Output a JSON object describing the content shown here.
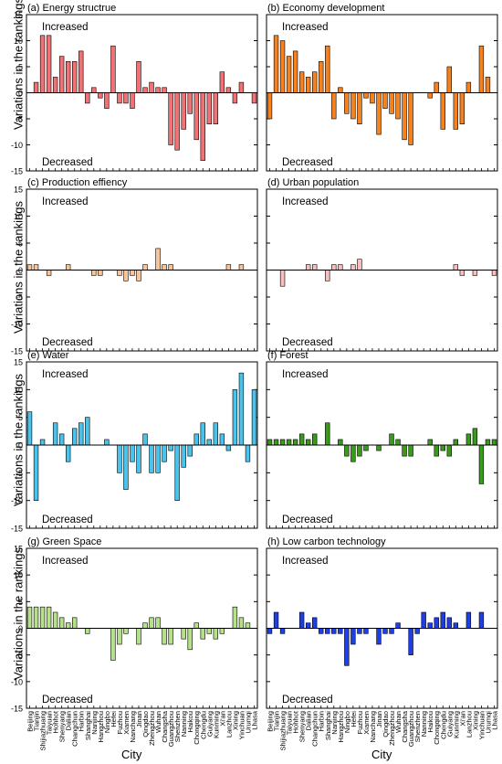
{
  "y_axis_label": "Variations in the rankings",
  "x_axis_label": "City",
  "cities": [
    "Beijing",
    "Tianjin",
    "Shijiazhuang",
    "Taiyuan",
    "Hohhot",
    "Shenyang",
    "Dalian",
    "Changchun",
    "Harbin",
    "Shanghai",
    "Nanjing",
    "Hangzhou",
    "Ningbo",
    "Hefei",
    "Fuzhou",
    "Xiamen",
    "Nanchang",
    "Jinan",
    "Qingdao",
    "Zhengzhou",
    "Wuhan",
    "Changsha",
    "Guangzhou",
    "Shenzhen",
    "Nanning",
    "Haikou",
    "Chongqing",
    "Chengdu",
    "Guiyang",
    "Kunming",
    "Xi'an",
    "Lanzhou",
    "Xining",
    "Yinchuan",
    "Urumqi",
    "Lhasa"
  ],
  "bar_colors": {
    "energy": "#f07275",
    "economy": "#f5821f",
    "production": "#f6c59a",
    "population": "#f6c0c0",
    "water": "#49c2ec",
    "forest": "#3a9a1a",
    "green": "#b6e089",
    "lowcarbon": "#1f3fe0"
  },
  "chart_data": [
    {
      "type": "bar",
      "key": "energy",
      "title": "(a) Energy structrue",
      "annotations": [
        "Increased",
        "Decreased"
      ],
      "ylim": [
        -15,
        15
      ],
      "yticks": [
        -15,
        -10,
        -5,
        0,
        5,
        10,
        15
      ],
      "values": [
        0,
        2,
        11,
        11,
        3,
        7,
        6,
        6,
        8,
        -2,
        1,
        -1,
        -3,
        9,
        -2,
        -2,
        -3,
        6,
        1,
        2,
        1,
        1,
        -10,
        -11,
        -7,
        -4,
        -9,
        -13,
        -6,
        -6,
        4,
        1,
        -2,
        2,
        0,
        -2
      ]
    },
    {
      "type": "bar",
      "key": "economy",
      "title": "(b) Economy development",
      "annotations": [
        "Increased",
        "Decreased"
      ],
      "ylim": [
        -15,
        15
      ],
      "yticks": [
        -15,
        -10,
        -5,
        0,
        5,
        10,
        15
      ],
      "values": [
        -5,
        11,
        10,
        7,
        8,
        4,
        3,
        4,
        6,
        9,
        -5,
        1,
        -4,
        -5,
        -6,
        -1,
        -2,
        -8,
        -3,
        -4,
        -5,
        -9,
        -10,
        0,
        0,
        -1,
        2,
        -7,
        5,
        -7,
        -6,
        2,
        0,
        9,
        3,
        0
      ]
    },
    {
      "type": "bar",
      "key": "production",
      "title": "(c) Production effiency",
      "annotations": [
        "Increased",
        "Decreased"
      ],
      "ylim": [
        -15,
        15
      ],
      "yticks": [
        -15,
        -10,
        -5,
        0,
        5,
        10,
        15
      ],
      "values": [
        1,
        1,
        0,
        -1,
        0,
        0,
        1,
        0,
        0,
        0,
        -1,
        -1,
        0,
        0,
        -1,
        -2,
        -1,
        -2,
        1,
        0,
        4,
        1,
        1,
        0,
        0,
        0,
        0,
        0,
        0,
        0,
        0,
        1,
        0,
        1,
        0,
        0
      ]
    },
    {
      "type": "bar",
      "key": "population",
      "title": "(d) Urban population",
      "annotations": [
        "Increased",
        "Decreased"
      ],
      "ylim": [
        -15,
        15
      ],
      "yticks": [
        -15,
        -10,
        -5,
        0,
        5,
        10,
        15
      ],
      "values": [
        0,
        0,
        -3,
        0,
        0,
        0,
        1,
        1,
        0,
        -2,
        1,
        1,
        0,
        1,
        2,
        0,
        0,
        0,
        0,
        0,
        0,
        0,
        0,
        0,
        0,
        0,
        0,
        0,
        0,
        1,
        -1,
        0,
        -1,
        0,
        0,
        -1
      ]
    },
    {
      "type": "bar",
      "key": "water",
      "title": "(e) Water",
      "annotations": [
        "Increased",
        "Decreased"
      ],
      "ylim": [
        -15,
        15
      ],
      "yticks": [
        -15,
        -10,
        -5,
        0,
        5,
        10,
        15
      ],
      "values": [
        6,
        -10,
        1,
        0,
        4,
        2,
        -3,
        3,
        4,
        5,
        0,
        0,
        1,
        0,
        -5,
        -8,
        -3,
        -5,
        2,
        -5,
        -5,
        -3,
        -1,
        -10,
        -4,
        -2,
        2,
        4,
        1,
        4,
        2,
        -1,
        10,
        13,
        -3,
        10
      ]
    },
    {
      "type": "bar",
      "key": "forest",
      "title": "(f) Forest",
      "annotations": [
        "Increased",
        "Decreased"
      ],
      "ylim": [
        -15,
        15
      ],
      "yticks": [
        -15,
        -10,
        -5,
        0,
        5,
        10,
        15
      ],
      "values": [
        1,
        1,
        1,
        1,
        1,
        2,
        1,
        2,
        0,
        4,
        0,
        1,
        -2,
        -3,
        -2,
        -1,
        0,
        -1,
        0,
        2,
        1,
        -2,
        -2,
        0,
        0,
        1,
        -2,
        -1,
        -2,
        1,
        0,
        2,
        3,
        -7,
        1,
        1
      ]
    },
    {
      "type": "bar",
      "key": "green",
      "title": "(g) Green Space",
      "annotations": [
        "Increased",
        "Decreased"
      ],
      "ylim": [
        -15,
        15
      ],
      "yticks": [
        -15,
        -10,
        -5,
        0,
        5,
        10,
        15
      ],
      "values": [
        4,
        4,
        4,
        4,
        3,
        2,
        1,
        2,
        0,
        -1,
        0,
        0,
        0,
        -6,
        -3,
        -1,
        0,
        -3,
        1,
        2,
        2,
        -3,
        -3,
        0,
        -2,
        -4,
        1,
        -2,
        -1,
        -2,
        -1,
        0,
        4,
        2,
        1,
        0
      ]
    },
    {
      "type": "bar",
      "key": "lowcarbon",
      "title": "(h) Low carbon technology",
      "annotations": [
        "Increased",
        "Decreased"
      ],
      "ylim": [
        -15,
        15
      ],
      "yticks": [
        -15,
        -10,
        -5,
        0,
        5,
        10,
        15
      ],
      "values": [
        -1,
        3,
        -1,
        0,
        0,
        3,
        1,
        2,
        -1,
        -1,
        -1,
        -1,
        -7,
        -3,
        -1,
        -1,
        0,
        -3,
        -1,
        -1,
        1,
        0,
        -5,
        -1,
        3,
        1,
        2,
        3,
        2,
        1,
        0,
        3,
        0,
        3,
        0,
        0
      ]
    }
  ]
}
